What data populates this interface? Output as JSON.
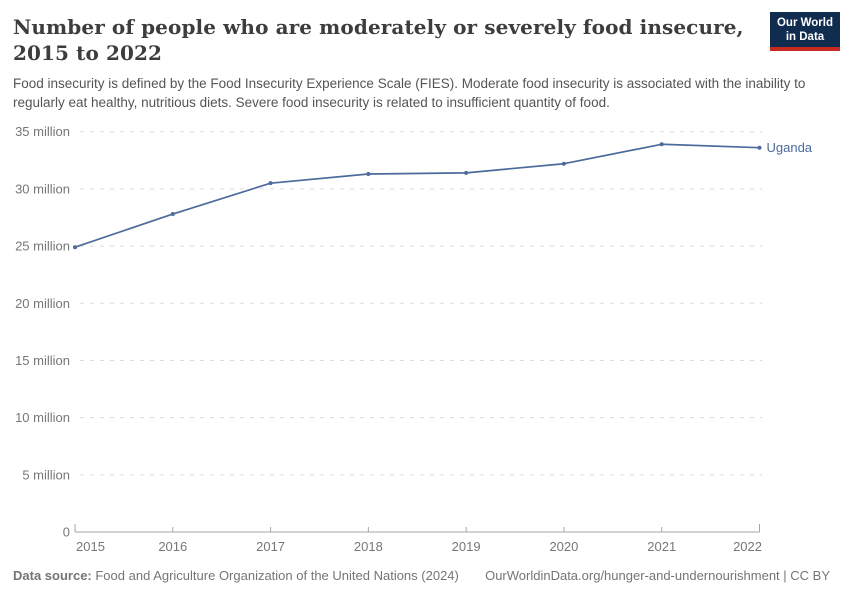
{
  "header": {
    "title_lines": [
      "Number of people who are moderately or severely food insecure,",
      "2015 to 2022"
    ],
    "subtitle": "Food insecurity is defined by the Food Insecurity Experience Scale (FIES). Moderate food insecurity is associated with the inability to regularly eat healthy, nutritious diets. Severe food insecurity is related to insufficient quantity of food.",
    "logo": {
      "line1": "Our World",
      "line2": "in Data",
      "bg_color": "#102d50",
      "accent_color": "#c7291e"
    }
  },
  "chart_data": {
    "type": "line",
    "title": "Number of people who are moderately or severely food insecure, 2015 to 2022",
    "x": [
      2015,
      2016,
      2017,
      2018,
      2019,
      2020,
      2021,
      2022
    ],
    "series": [
      {
        "name": "Uganda",
        "color": "#4C6A9C",
        "values": [
          24.9,
          27.8,
          30.5,
          31.3,
          31.4,
          32.2,
          33.9,
          33.6
        ]
      }
    ],
    "unit": "million people",
    "ylim": [
      0,
      35
    ],
    "yticks": [
      0,
      5,
      10,
      15,
      20,
      25,
      30,
      35
    ],
    "ytick_labels": [
      "0",
      "5 million",
      "10 million",
      "15 million",
      "20 million",
      "25 million",
      "30 million",
      "35 million"
    ],
    "grid": "horizontal-dashed",
    "grid_color": "#dbdbdb",
    "axis_color": "#a5a5a5",
    "tick_label_color": "#777777",
    "legend": "line-end-label"
  },
  "footer": {
    "source_label": "Data source:",
    "source_text": " Food and Agriculture Organization of the United Nations (2024)",
    "link_text": "OurWorldinData.org/hunger-and-undernourishment | CC BY"
  }
}
